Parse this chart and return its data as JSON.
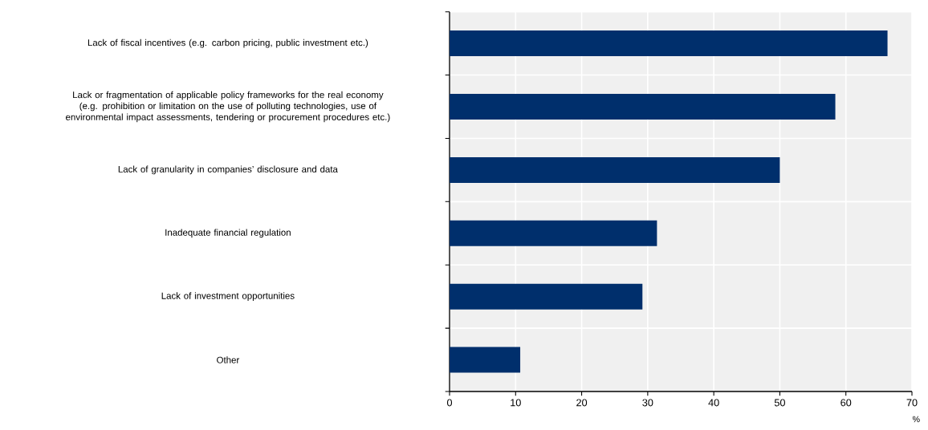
{
  "chart_data": {
    "type": "bar",
    "orientation": "horizontal",
    "xlabel": "%",
    "categories": [
      "Lack of fiscal incentives (e.g. carbon pricing, public investment etc.)",
      "Lack or fragmentation of applicable policy frameworks for the real economy (e.g. prohibition or limitation on the use of polluting technologies, use of environmental impact assessments, tendering or procurement procedures etc.)",
      "Lack of granularity in companies’ disclosure and data",
      "Inadequate financial regulation",
      "Lack of investment opportunities",
      "Other"
    ],
    "values": [
      66.3,
      58.4,
      50.0,
      31.4,
      29.2,
      10.7
    ],
    "color": "#002f6c",
    "xlim": [
      0,
      70
    ],
    "xticks": [
      0,
      10,
      20,
      30,
      40,
      50,
      60,
      70
    ],
    "grid": true
  }
}
